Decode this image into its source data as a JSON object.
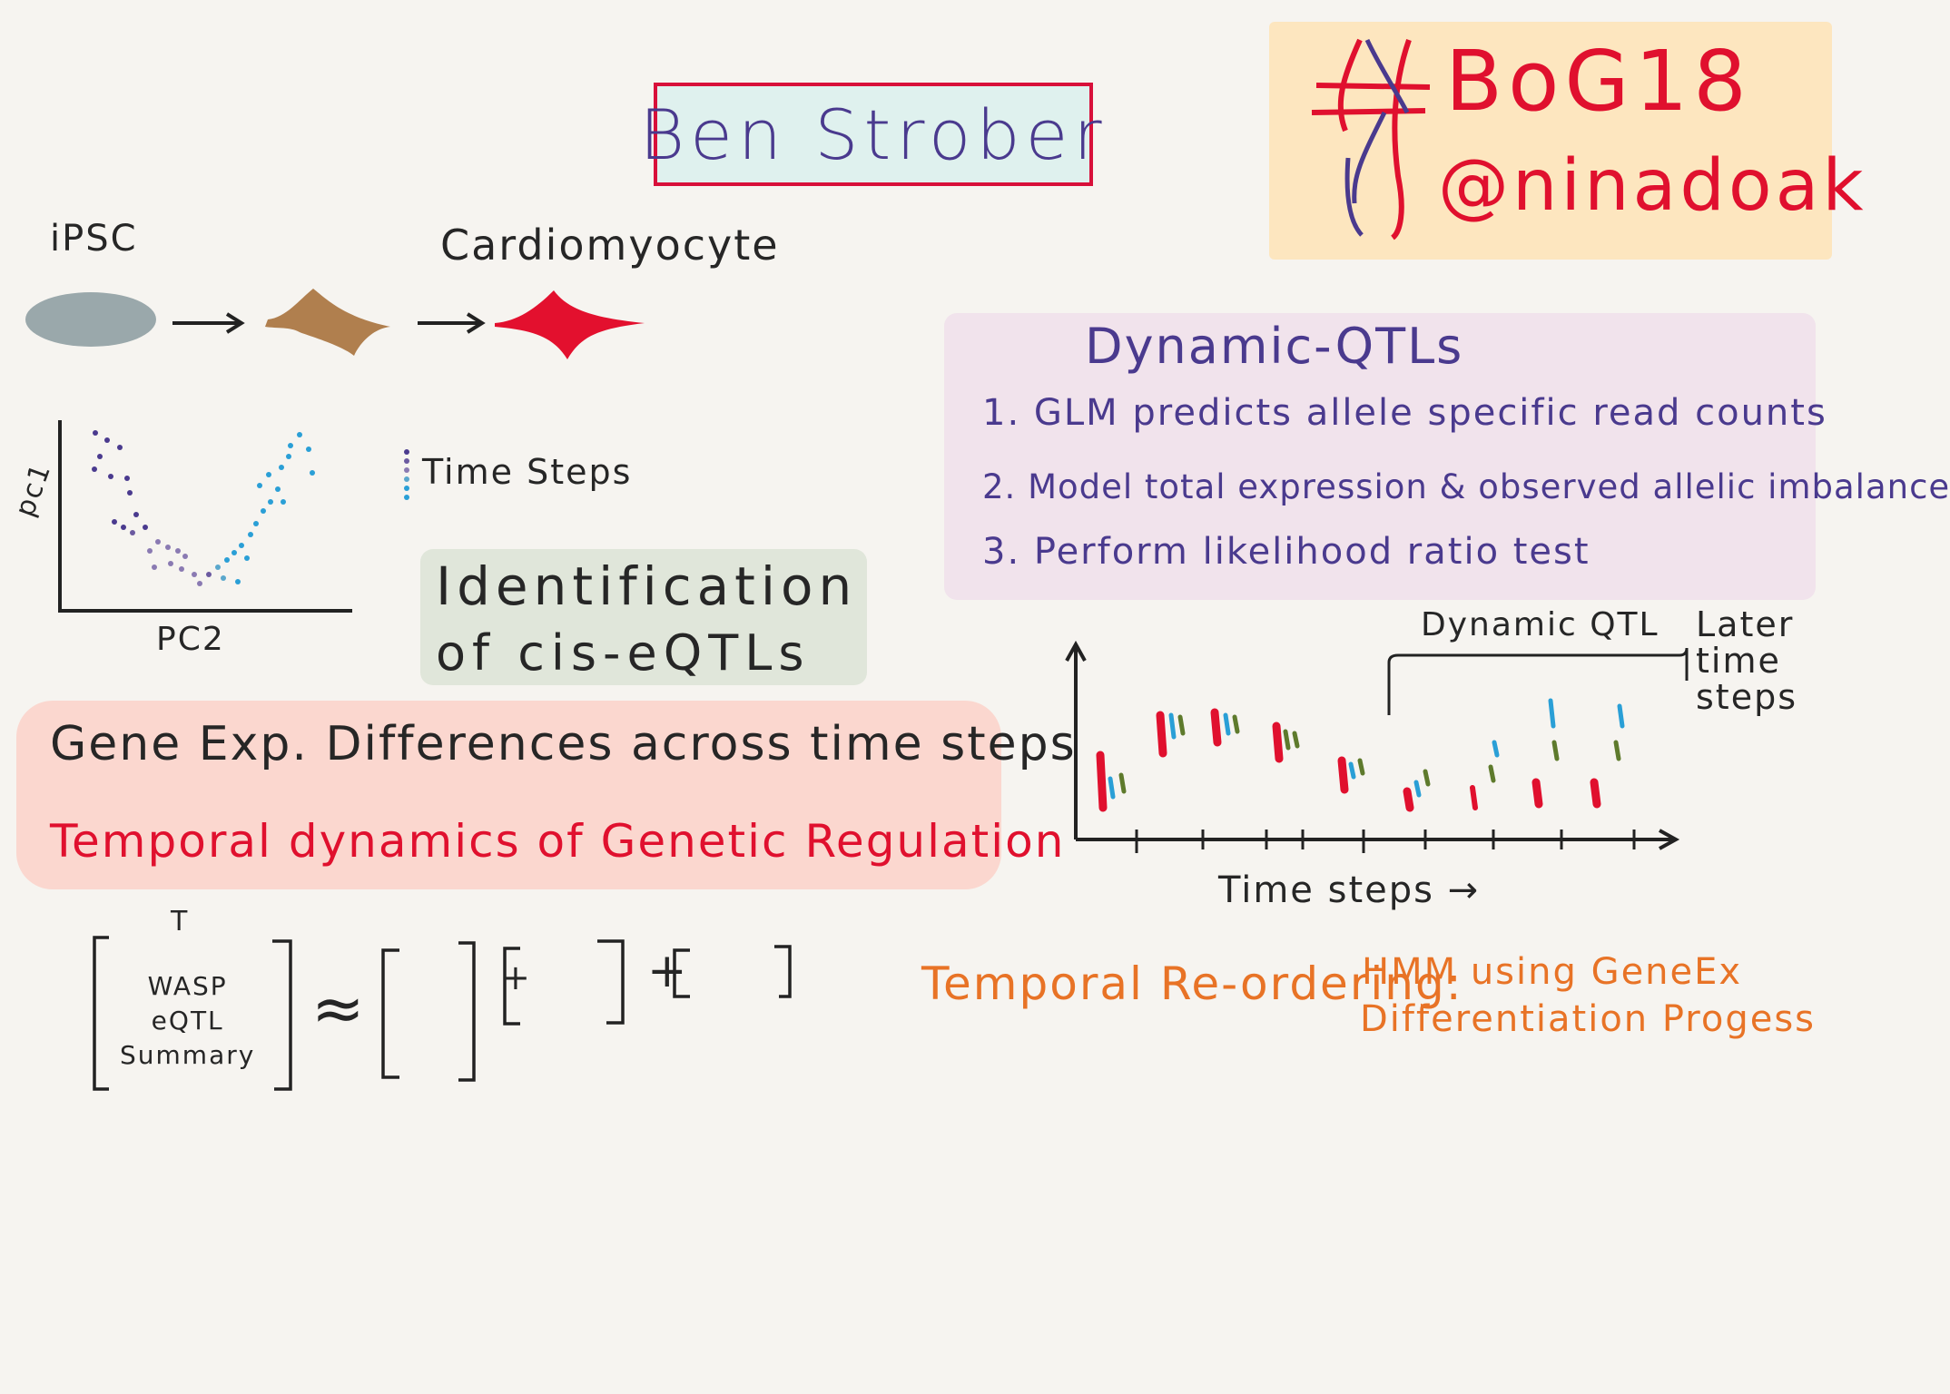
{
  "title": "Ben Strober",
  "hashtag": {
    "line1": "BoG18",
    "line2": "@ninadoak"
  },
  "pipeline": {
    "start_label": "iPSC",
    "end_label": "Cardiomyocyte"
  },
  "pca_plot": {
    "y_label": "pc1",
    "x_label": "PC2",
    "legend": "Time Steps"
  },
  "dynamic_qtls": {
    "title": "Dynamic-QTLs",
    "items": [
      "1. GLM predicts allele specific read counts",
      "2. Model total expression & observed allelic imbalance",
      "3. Perform likelihood ratio test"
    ]
  },
  "identification": {
    "line1": "Identification",
    "line2": "of cis-eQTLs"
  },
  "gene_box": {
    "line1": "Gene Exp. Differences across time steps",
    "line2": "Temporal dynamics of Genetic Regulation"
  },
  "qtl_chart": {
    "bracket_label": "Dynamic QTL",
    "later_label": "Later\ntime\nsteps",
    "x_label": "Time steps →"
  },
  "equation": {
    "superscript": "T",
    "text": "WASP\neQTL\nSummary",
    "approx": "≈",
    "plus": "+"
  },
  "reordering": {
    "label": "Temporal Re-ordering:",
    "line1": "HMM using GeneEx",
    "line2": "Differentiation Progess"
  },
  "colors": {
    "title_border": "#d8103a",
    "title_bg": "#dff1ee",
    "tag_bg": "#fde6bf",
    "dyn_bg": "#f1e3ec",
    "ident_bg": "#e0e6da",
    "gene_bg": "#fbd7cf",
    "red": "#e0102e",
    "blue": "#2a9fd6",
    "green": "#5e7a2c",
    "purple": "#4a3a8e",
    "orange": "#e87326"
  }
}
